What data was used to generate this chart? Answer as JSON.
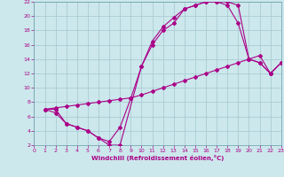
{
  "xlabel": "Windchill (Refroidissement éolien,°C)",
  "bg_color": "#cce8ec",
  "grid_color": "#aaccd4",
  "line_color": "#aa0088",
  "xlim": [
    0,
    23
  ],
  "ylim": [
    2,
    22
  ],
  "xticks": [
    0,
    1,
    2,
    3,
    4,
    5,
    6,
    7,
    8,
    9,
    10,
    11,
    12,
    13,
    14,
    15,
    16,
    17,
    18,
    19,
    20,
    21,
    22,
    23
  ],
  "yticks": [
    2,
    4,
    6,
    8,
    10,
    12,
    14,
    16,
    18,
    20,
    22
  ],
  "line1_x": [
    1,
    2,
    3,
    4,
    5,
    6,
    7,
    8,
    10,
    11,
    12,
    13,
    14,
    15,
    16,
    17,
    18,
    19,
    20,
    21,
    22,
    23
  ],
  "line1_y": [
    7,
    7,
    5,
    4.5,
    4,
    3,
    2,
    2,
    13,
    16.5,
    18.5,
    19.8,
    21,
    21.5,
    22,
    22,
    22,
    21.5,
    14,
    13.5,
    12,
    13.5
  ],
  "line2_x": [
    1,
    2,
    3,
    4,
    5,
    6,
    7,
    8,
    9,
    10,
    11,
    12,
    13,
    14,
    15,
    16,
    17,
    18,
    19,
    20,
    21,
    22,
    23
  ],
  "line2_y": [
    7,
    6.5,
    5,
    4.5,
    4,
    3,
    2.5,
    4.5,
    8.5,
    13,
    16,
    18,
    19,
    21,
    21.5,
    22,
    22,
    21.5,
    19,
    14,
    13.5,
    12,
    13.5
  ],
  "line3_x": [
    1,
    2,
    3,
    4,
    5,
    6,
    7,
    8,
    9,
    10,
    11,
    12,
    13,
    14,
    15,
    16,
    17,
    18,
    19,
    20,
    21,
    22,
    23
  ],
  "line3_y": [
    7,
    7.2,
    7.4,
    7.6,
    7.8,
    8,
    8.2,
    8.4,
    8.6,
    9,
    9.5,
    10,
    10.5,
    11,
    11.5,
    12,
    12.5,
    13,
    13.5,
    14,
    14.5,
    12,
    13.5
  ]
}
